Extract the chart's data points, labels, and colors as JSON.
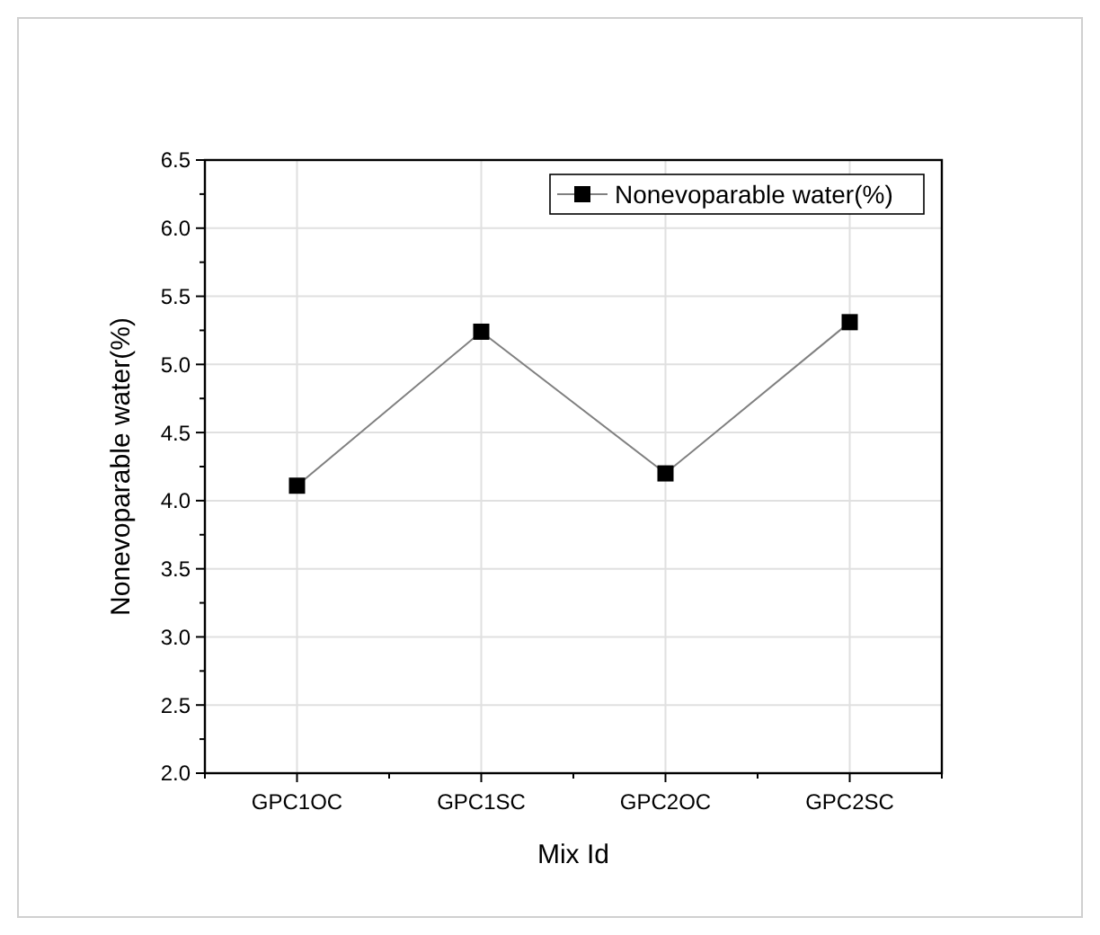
{
  "chart_data": {
    "type": "line",
    "xlabel": "Mix Id",
    "ylabel": "Nonevoparable water(%)",
    "categories": [
      "GPC1OC",
      "GPC1SC",
      "GPC2OC",
      "GPC2SC"
    ],
    "series": [
      {
        "name": "Nonevoparable water(%)",
        "color": "#000000",
        "values": [
          4.11,
          5.24,
          4.2,
          5.31
        ]
      }
    ],
    "ylim": [
      2.0,
      6.5
    ],
    "yticks": [
      {
        "value": 2,
        "label": "2.0"
      },
      {
        "value": 2.5,
        "label": "2.5"
      },
      {
        "value": 3,
        "label": "3.0"
      },
      {
        "value": 3.5,
        "label": "3.5"
      },
      {
        "value": 4,
        "label": "4.0"
      },
      {
        "value": 4.5,
        "label": "4.5"
      },
      {
        "value": 5,
        "label": "5.0"
      },
      {
        "value": 5.5,
        "label": "5.5"
      },
      {
        "value": 6,
        "label": "6.0"
      },
      {
        "value": 6.5,
        "label": "6.5"
      }
    ],
    "grid": true,
    "legend": "top right",
    "marker": "square",
    "line_style": "solid"
  }
}
